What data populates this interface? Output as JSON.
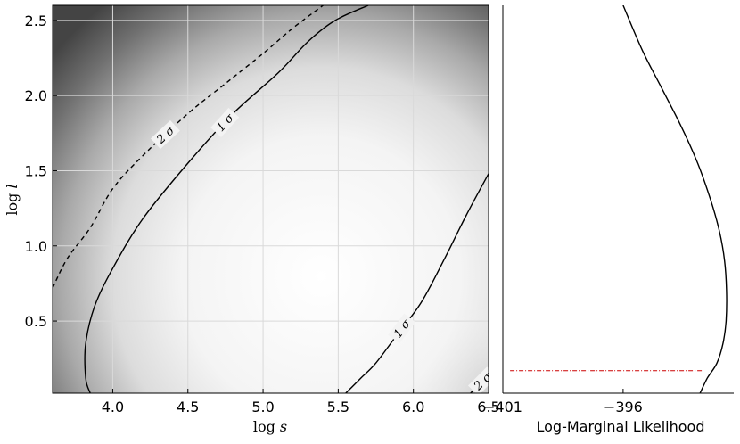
{
  "chart_data": [
    {
      "type": "heatmap",
      "xlabel": "log s",
      "ylabel": "log l",
      "xlim": [
        3.6,
        6.5
      ],
      "ylim": [
        0.02,
        2.6
      ],
      "xticks": [
        "4.0",
        "4.5",
        "5.0",
        "5.5",
        "6.0",
        "6.5"
      ],
      "xtick_values": [
        4.0,
        4.5,
        5.0,
        5.5,
        6.0,
        6.5
      ],
      "yticks": [
        "0.5",
        "1.0",
        "1.5",
        "2.0",
        "2.5"
      ],
      "ytick_values": [
        0.5,
        1.0,
        1.5,
        2.0,
        2.5
      ],
      "grid": true,
      "colormap": "grayscale (darker = lower likelihood)",
      "contours": [
        {
          "level": "2σ",
          "style": "dashed",
          "points": [
            [
              3.6,
              0.72
            ],
            [
              3.7,
              0.92
            ],
            [
              3.85,
              1.12
            ],
            [
              4.0,
              1.38
            ],
            [
              4.2,
              1.6
            ],
            [
              4.5,
              1.88
            ],
            [
              4.75,
              2.08
            ],
            [
              5.0,
              2.28
            ],
            [
              5.2,
              2.45
            ],
            [
              5.4,
              2.6
            ]
          ]
        },
        {
          "level": "1σ",
          "style": "solid",
          "points": [
            [
              3.85,
              0.02
            ],
            [
              3.82,
              0.12
            ],
            [
              3.82,
              0.35
            ],
            [
              3.88,
              0.6
            ],
            [
              4.0,
              0.85
            ],
            [
              4.2,
              1.18
            ],
            [
              4.5,
              1.55
            ],
            [
              4.8,
              1.88
            ],
            [
              5.1,
              2.15
            ],
            [
              5.3,
              2.36
            ],
            [
              5.48,
              2.5
            ],
            [
              5.7,
              2.6
            ]
          ]
        },
        {
          "level": "1σ",
          "style": "solid",
          "points": [
            [
              5.55,
              0.02
            ],
            [
              5.65,
              0.12
            ],
            [
              5.75,
              0.22
            ],
            [
              5.9,
              0.42
            ],
            [
              6.05,
              0.62
            ],
            [
              6.2,
              0.9
            ],
            [
              6.35,
              1.2
            ],
            [
              6.5,
              1.48
            ]
          ]
        },
        {
          "level": "2σ",
          "style": "solid",
          "points": [
            [
              6.38,
              0.02
            ],
            [
              6.45,
              0.09
            ],
            [
              6.5,
              0.14
            ]
          ]
        }
      ],
      "contour_labels": [
        "2 σ",
        "1 σ",
        "1 σ",
        "2 σ"
      ]
    },
    {
      "type": "line",
      "xlabel": "Log-Marginal Likelihood",
      "xticks": [
        "−401",
        "−396"
      ],
      "xtick_values": [
        -401,
        -396
      ],
      "xlim": [
        -401.0,
        -391.4
      ],
      "ylim": [
        0.02,
        2.6
      ],
      "grid": false,
      "series": [
        {
          "style": "solid",
          "color": "#000000",
          "x": [
            -392.8,
            -392.5,
            -392.1,
            -391.85,
            -391.72,
            -391.7,
            -391.78,
            -392.0,
            -392.35,
            -392.9,
            -393.6,
            -394.4,
            -395.2,
            -396.0
          ],
          "y": [
            0.02,
            0.12,
            0.22,
            0.35,
            0.5,
            0.7,
            0.9,
            1.1,
            1.3,
            1.55,
            1.8,
            2.05,
            2.3,
            2.6
          ]
        },
        {
          "style": "dash-dot",
          "color": "#cc0000",
          "x": [
            -400.7,
            -392.7
          ],
          "y": [
            0.17,
            0.17
          ]
        }
      ]
    }
  ],
  "colors": {
    "axis": "#000000",
    "grid": "#d9d9d9",
    "marker_line": "#cc0000"
  }
}
